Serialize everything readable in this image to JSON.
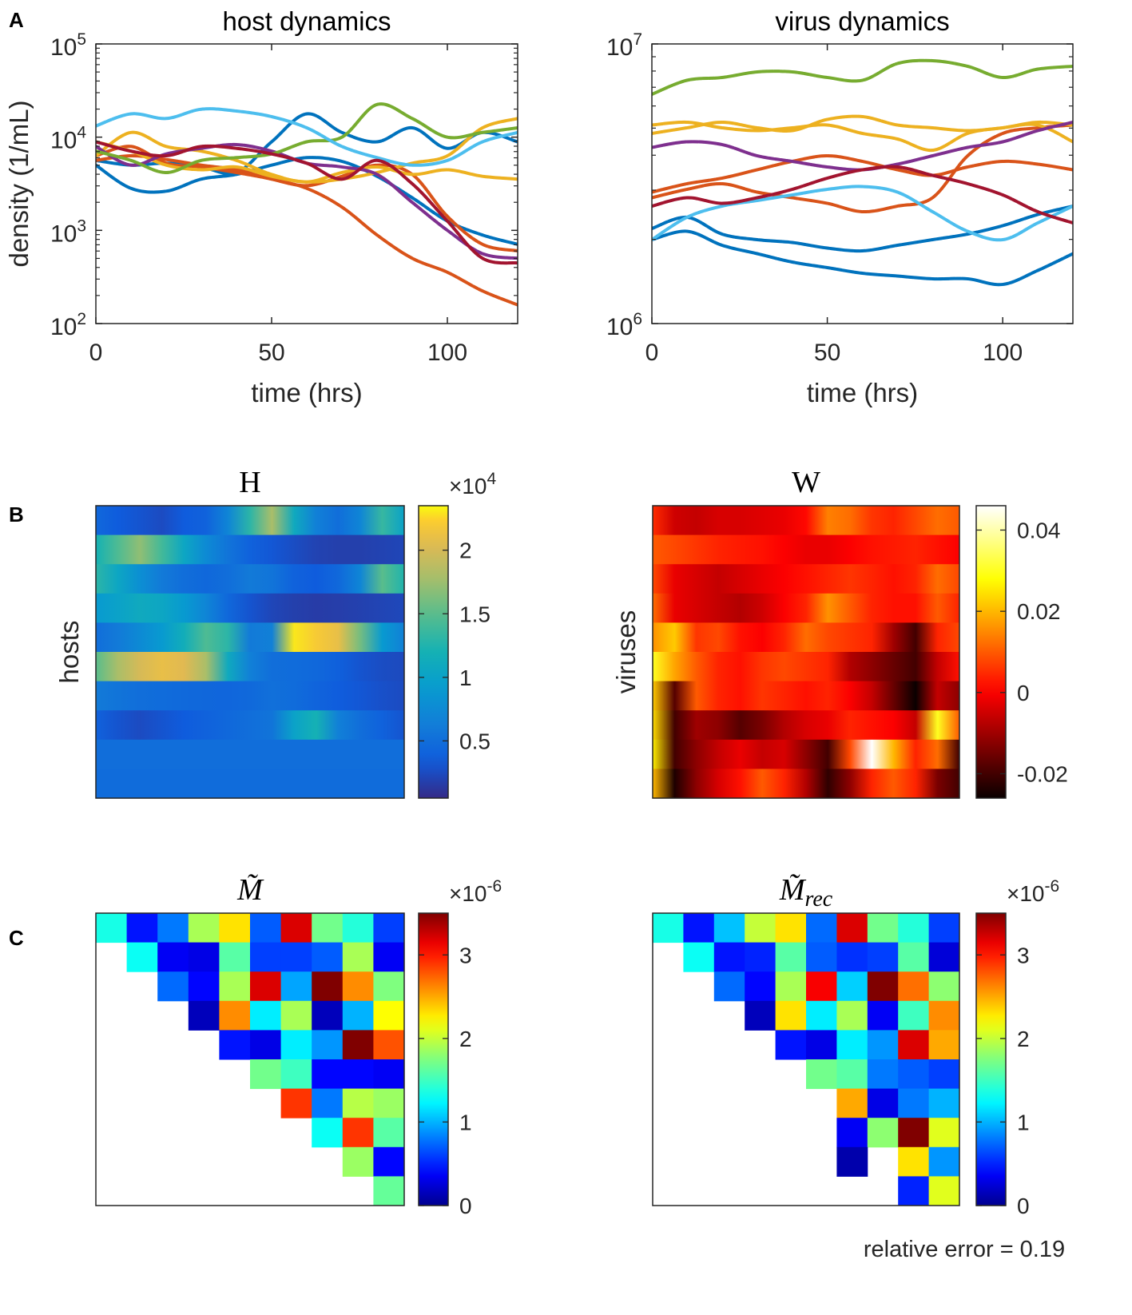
{
  "panel_letters": [
    "A",
    "B",
    "C"
  ],
  "chart_data": [
    {
      "id": "host",
      "type": "line",
      "title": "host dynamics",
      "xlabel": "time (hrs)",
      "ylabel": "density (1/mL)",
      "yscale": "log",
      "xlim": [
        0,
        120
      ],
      "ylim_exp": [
        2,
        5
      ],
      "xticks": [
        0,
        50,
        100
      ],
      "xtick_labels": [
        "0",
        "50",
        "100"
      ],
      "yticks_exp": [
        2,
        3,
        4,
        5
      ],
      "ytick_base": "10",
      "ytick_exps": [
        "2",
        "3",
        "4",
        "5"
      ],
      "x": [
        0,
        10,
        20,
        30,
        40,
        50,
        60,
        70,
        80,
        90,
        100,
        110,
        120
      ],
      "series": [
        {
          "name": "s1",
          "color": "#0072BD",
          "log10": [
            3.7,
            3.45,
            3.42,
            3.55,
            3.6,
            3.7,
            3.78,
            3.74,
            3.58,
            3.35,
            3.1,
            2.95,
            2.85
          ]
        },
        {
          "name": "s2",
          "color": "#0072BD",
          "log10": [
            3.75,
            3.7,
            3.72,
            3.68,
            3.62,
            3.95,
            4.25,
            4.05,
            3.95,
            4.1,
            3.88,
            4.05,
            3.95
          ]
        },
        {
          "name": "s3",
          "color": "#D95319",
          "log10": [
            3.8,
            3.9,
            3.72,
            3.68,
            3.62,
            3.55,
            3.45,
            3.25,
            2.95,
            2.7,
            2.55,
            2.35,
            2.2
          ]
        },
        {
          "name": "s4",
          "color": "#D95319",
          "log10": [
            3.75,
            3.8,
            3.76,
            3.7,
            3.65,
            3.55,
            3.48,
            3.58,
            3.7,
            3.6,
            3.15,
            2.85,
            2.78
          ]
        },
        {
          "name": "s5",
          "color": "#EDB120",
          "log10": [
            3.8,
            4.05,
            3.9,
            3.85,
            3.75,
            3.6,
            3.52,
            3.62,
            3.68,
            3.6,
            3.65,
            3.58,
            3.55
          ]
        },
        {
          "name": "s6",
          "color": "#EDB120",
          "log10": [
            3.95,
            3.85,
            3.7,
            3.65,
            3.68,
            3.58,
            3.52,
            3.55,
            3.62,
            3.72,
            3.8,
            4.1,
            4.2
          ]
        },
        {
          "name": "s7",
          "color": "#7E2F8E",
          "log10": [
            3.9,
            3.7,
            3.82,
            3.88,
            3.92,
            3.85,
            3.72,
            3.68,
            3.6,
            3.3,
            3.0,
            2.75,
            2.7
          ]
        },
        {
          "name": "s8",
          "color": "#77AC30",
          "log10": [
            3.85,
            3.75,
            3.62,
            3.75,
            3.78,
            3.82,
            3.95,
            4.0,
            4.35,
            4.2,
            4.0,
            4.05,
            4.1
          ]
        },
        {
          "name": "s9",
          "color": "#4DBEEE",
          "log10": [
            4.12,
            4.25,
            4.2,
            4.3,
            4.28,
            4.22,
            4.1,
            3.9,
            3.78,
            3.7,
            3.75,
            3.95,
            4.05
          ]
        },
        {
          "name": "s10",
          "color": "#A2142F",
          "log10": [
            3.95,
            3.85,
            3.8,
            3.9,
            3.88,
            3.82,
            3.72,
            3.55,
            3.75,
            3.5,
            3.1,
            2.7,
            2.65
          ]
        }
      ]
    },
    {
      "id": "virus",
      "type": "line",
      "title": "virus dynamics",
      "xlabel": "time (hrs)",
      "yscale": "log",
      "xlim": [
        0,
        120
      ],
      "ylim_exp": [
        6,
        7
      ],
      "xticks": [
        0,
        50,
        100
      ],
      "xtick_labels": [
        "0",
        "50",
        "100"
      ],
      "yticks_exp": [
        6,
        7
      ],
      "ytick_base": "10",
      "ytick_exps": [
        "6",
        "7"
      ],
      "x": [
        0,
        10,
        20,
        30,
        40,
        50,
        60,
        70,
        80,
        90,
        100,
        110,
        120
      ],
      "series": [
        {
          "name": "s1",
          "color": "#0072BD",
          "log10": [
            6.34,
            6.38,
            6.32,
            6.3,
            6.29,
            6.27,
            6.26,
            6.28,
            6.3,
            6.32,
            6.35,
            6.39,
            6.42
          ]
        },
        {
          "name": "s2",
          "color": "#0072BD",
          "log10": [
            6.3,
            6.33,
            6.28,
            6.25,
            6.22,
            6.2,
            6.18,
            6.17,
            6.16,
            6.16,
            6.14,
            6.19,
            6.25
          ]
        },
        {
          "name": "s3",
          "color": "#D95319",
          "log10": [
            6.45,
            6.48,
            6.5,
            6.47,
            6.45,
            6.43,
            6.4,
            6.42,
            6.45,
            6.6,
            6.68,
            6.7,
            6.71
          ]
        },
        {
          "name": "s4",
          "color": "#D95319",
          "log10": [
            6.47,
            6.5,
            6.52,
            6.55,
            6.58,
            6.6,
            6.58,
            6.55,
            6.53,
            6.56,
            6.58,
            6.57,
            6.55
          ]
        },
        {
          "name": "s5",
          "color": "#EDB120",
          "log10": [
            6.71,
            6.72,
            6.7,
            6.69,
            6.7,
            6.71,
            6.68,
            6.66,
            6.62,
            6.68,
            6.7,
            6.71,
            6.65
          ]
        },
        {
          "name": "s6",
          "color": "#EDB120",
          "log10": [
            6.68,
            6.7,
            6.72,
            6.7,
            6.69,
            6.73,
            6.74,
            6.71,
            6.7,
            6.69,
            6.7,
            6.72,
            6.71
          ]
        },
        {
          "name": "s7",
          "color": "#7E2F8E",
          "log10": [
            6.63,
            6.65,
            6.64,
            6.6,
            6.58,
            6.56,
            6.55,
            6.57,
            6.6,
            6.63,
            6.65,
            6.69,
            6.72
          ]
        },
        {
          "name": "s8",
          "color": "#77AC30",
          "log10": [
            6.82,
            6.87,
            6.88,
            6.9,
            6.9,
            6.88,
            6.87,
            6.93,
            6.94,
            6.92,
            6.88,
            6.91,
            6.92
          ]
        },
        {
          "name": "s9",
          "color": "#4DBEEE",
          "log10": [
            6.3,
            6.38,
            6.42,
            6.44,
            6.46,
            6.48,
            6.49,
            6.47,
            6.4,
            6.33,
            6.3,
            6.36,
            6.42
          ]
        },
        {
          "name": "s10",
          "color": "#A2142F",
          "log10": [
            6.42,
            6.45,
            6.43,
            6.45,
            6.48,
            6.52,
            6.55,
            6.56,
            6.53,
            6.5,
            6.46,
            6.4,
            6.36
          ]
        }
      ]
    },
    {
      "id": "H",
      "type": "heatmap",
      "title": "H",
      "ylabel": "hosts",
      "colormap": "parula",
      "clim": [
        500,
        23500
      ],
      "cbar_ticks": [
        5000,
        10000,
        15000,
        20000
      ],
      "cbar_tick_labels": [
        "0.5",
        "1",
        "1.5",
        "2"
      ],
      "cbar_exp_base": "×10",
      "cbar_exp": "4",
      "rows": [
        [
          4500,
          3500,
          3000,
          2500,
          3500,
          4000,
          7000,
          13000,
          18000,
          11000,
          6500,
          5000,
          7000,
          13500,
          10000
        ],
        [
          12000,
          14500,
          17000,
          14000,
          10500,
          7500,
          5500,
          4000,
          3200,
          2600,
          2000,
          1800,
          1800,
          2000,
          2200
        ],
        [
          13000,
          10500,
          8000,
          6000,
          5000,
          4500,
          5000,
          6000,
          5500,
          4000,
          3500,
          4500,
          7000,
          15000,
          12500
        ],
        [
          9000,
          10000,
          11000,
          10500,
          9000,
          7000,
          4500,
          3000,
          2200,
          1800,
          1600,
          1700,
          1900,
          2100,
          2300
        ],
        [
          5000,
          6000,
          7500,
          9000,
          11500,
          14500,
          13000,
          6000,
          6500,
          23000,
          22000,
          21000,
          16000,
          9000,
          6500
        ],
        [
          15000,
          18000,
          20000,
          21000,
          20500,
          18000,
          11000,
          6500,
          5000,
          4800,
          4500,
          3800,
          3000,
          2600,
          2400
        ],
        [
          6000,
          5500,
          5000,
          4800,
          4600,
          4400,
          4300,
          4600,
          5200,
          4800,
          4200,
          3600,
          3200,
          2800,
          2500
        ],
        [
          4000,
          3000,
          2500,
          3000,
          3500,
          4000,
          4500,
          5000,
          5500,
          10000,
          12000,
          6500,
          5000,
          4000,
          3000
        ],
        [
          5000,
          5000,
          5000,
          5000,
          5000,
          5000,
          5000,
          5000,
          5000,
          5000,
          5000,
          5000,
          5000,
          5000,
          5000
        ],
        [
          4800,
          4800,
          4800,
          4800,
          4800,
          4800,
          4800,
          4800,
          4800,
          4800,
          4800,
          4800,
          4800,
          4800,
          4800
        ]
      ]
    },
    {
      "id": "W",
      "type": "heatmap",
      "title": "W",
      "ylabel": "viruses",
      "colormap": "hot",
      "clim": [
        -0.026,
        0.046
      ],
      "cbar_ticks": [
        0.04,
        0.02,
        0,
        -0.02
      ],
      "cbar_tick_labels": [
        "0.04",
        "0.02",
        "0",
        "-0.02"
      ],
      "rows": [
        [
          0.005,
          -0.005,
          -0.006,
          -0.004,
          -0.004,
          -0.003,
          -0.002,
          0.001,
          0.014,
          0.012,
          0.006,
          0.004,
          0.008,
          0.012,
          0.01
        ],
        [
          0.01,
          0.008,
          0.006,
          0.004,
          0.003,
          0.002,
          0.0,
          -0.002,
          -0.002,
          0.0,
          0.002,
          0.003,
          0.004,
          0.002,
          0.0
        ],
        [
          0.008,
          -0.002,
          -0.004,
          -0.006,
          -0.004,
          -0.002,
          0.0,
          0.002,
          0.004,
          0.006,
          0.004,
          0.002,
          0.004,
          0.012,
          0.008
        ],
        [
          0.012,
          -0.002,
          -0.004,
          -0.006,
          -0.008,
          -0.005,
          0.0,
          0.004,
          0.016,
          0.01,
          0.004,
          0.002,
          0.002,
          0.01,
          0.004
        ],
        [
          0.016,
          0.022,
          0.006,
          0.008,
          0.002,
          0.0,
          0.004,
          0.012,
          0.008,
          0.006,
          0.004,
          -0.01,
          -0.02,
          0.004,
          0.008
        ],
        [
          0.03,
          0.018,
          0.01,
          0.004,
          0.002,
          0.006,
          0.008,
          0.006,
          0.004,
          -0.008,
          -0.012,
          -0.016,
          -0.02,
          -0.006,
          0.002
        ],
        [
          0.022,
          -0.018,
          0.01,
          0.004,
          0.002,
          0.006,
          0.004,
          0.002,
          0.004,
          0.0,
          -0.006,
          -0.016,
          -0.026,
          -0.006,
          -0.012
        ],
        [
          0.024,
          -0.02,
          -0.01,
          -0.012,
          -0.018,
          -0.014,
          -0.008,
          -0.004,
          -0.002,
          0.004,
          0.002,
          0.0,
          -0.006,
          0.03,
          0.01
        ],
        [
          0.026,
          -0.02,
          -0.012,
          -0.006,
          -0.002,
          -0.006,
          -0.004,
          -0.012,
          -0.02,
          0.008,
          0.046,
          0.02,
          0.004,
          0.012,
          -0.02
        ],
        [
          0.02,
          -0.024,
          -0.012,
          -0.004,
          0.002,
          0.01,
          0.004,
          -0.008,
          -0.022,
          -0.012,
          0.004,
          0.01,
          0.004,
          -0.014,
          -0.02
        ]
      ]
    },
    {
      "id": "M",
      "type": "heatmap",
      "title": "M̃",
      "colormap": "jet",
      "clim": [
        0,
        3.5
      ],
      "cbar_ticks": [
        0,
        1,
        2,
        3
      ],
      "cbar_tick_labels": [
        "0",
        "1",
        "2",
        "3"
      ],
      "cbar_exp_base": "×10",
      "cbar_exp": "-6",
      "rows": [
        [
          1.35,
          0.45,
          0.8,
          1.9,
          2.3,
          0.7,
          3.2,
          1.7,
          1.4,
          0.6
        ],
        [
          null,
          1.3,
          0.35,
          0.3,
          1.6,
          0.6,
          0.6,
          0.7,
          1.9,
          0.35
        ],
        [
          null,
          null,
          0.75,
          0.4,
          1.9,
          3.2,
          0.95,
          3.8,
          2.6,
          1.75
        ],
        [
          null,
          null,
          null,
          0.15,
          2.6,
          1.2,
          1.9,
          0.15,
          1.0,
          2.2
        ],
        [
          null,
          null,
          null,
          null,
          0.45,
          0.3,
          1.2,
          0.9,
          3.8,
          2.8
        ],
        [
          null,
          null,
          null,
          null,
          null,
          1.7,
          1.5,
          0.4,
          0.4,
          0.35
        ],
        [
          null,
          null,
          null,
          null,
          null,
          null,
          2.9,
          0.8,
          1.95,
          1.85
        ],
        [
          null,
          null,
          null,
          null,
          null,
          null,
          null,
          1.3,
          2.9,
          1.6
        ],
        [
          null,
          null,
          null,
          null,
          null,
          null,
          null,
          null,
          1.85,
          0.4
        ],
        [
          null,
          null,
          null,
          null,
          null,
          null,
          null,
          null,
          null,
          1.65
        ]
      ]
    },
    {
      "id": "Mrec",
      "type": "heatmap",
      "title": "M̃",
      "title_sub": "rec",
      "colormap": "jet",
      "clim": [
        0,
        3.5
      ],
      "cbar_ticks": [
        0,
        1,
        2,
        3
      ],
      "cbar_tick_labels": [
        "0",
        "1",
        "2",
        "3"
      ],
      "cbar_exp_base": "×10",
      "cbar_exp": "-6",
      "annotation": "relative error = 0.19",
      "rows": [
        [
          1.35,
          0.45,
          1.05,
          2.0,
          2.3,
          0.75,
          3.2,
          1.7,
          1.4,
          0.6
        ],
        [
          null,
          1.3,
          0.45,
          0.5,
          1.6,
          0.7,
          0.55,
          0.6,
          1.6,
          0.25
        ],
        [
          null,
          null,
          0.75,
          0.4,
          1.9,
          3.1,
          1.1,
          3.8,
          2.7,
          1.8
        ],
        [
          null,
          null,
          null,
          0.15,
          2.3,
          1.2,
          1.9,
          0.35,
          1.5,
          2.6
        ],
        [
          null,
          null,
          null,
          null,
          0.45,
          0.3,
          1.2,
          0.9,
          3.2,
          2.5
        ],
        [
          null,
          null,
          null,
          null,
          null,
          1.7,
          1.6,
          0.8,
          0.7,
          0.6
        ],
        [
          null,
          null,
          null,
          null,
          null,
          null,
          2.5,
          0.3,
          0.8,
          1.0
        ],
        [
          null,
          null,
          null,
          null,
          null,
          null,
          0.35,
          1.8,
          3.8,
          2.1
        ],
        [
          null,
          null,
          null,
          null,
          null,
          null,
          0.1,
          null,
          2.3,
          0.9
        ],
        [
          null,
          null,
          null,
          null,
          null,
          null,
          null,
          null,
          0.5,
          2.1
        ]
      ]
    }
  ]
}
